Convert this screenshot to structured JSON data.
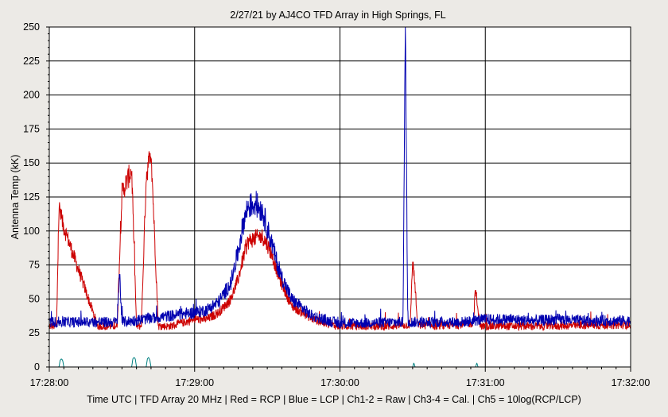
{
  "chart_data": {
    "type": "line",
    "title": "2/27/21  by  AJ4CO TFD Array  in  High Springs, FL",
    "xlabel": "Time UTC | TFD Array 20 MHz | Red = RCP | Blue = LCP | Ch1-2 = Raw | Ch3-4 = Cal. | Ch5 = 10log(RCP/LCP)",
    "ylabel": "Antenna Temp (kK)",
    "x_ticks": [
      "17:28:00",
      "17:29:00",
      "17:30:00",
      "17:31:00",
      "17:32:00"
    ],
    "x_range_seconds_after_1728": [
      0,
      240
    ],
    "ylim": [
      0,
      250
    ],
    "y_ticks": [
      0,
      25,
      50,
      75,
      100,
      125,
      150,
      175,
      200,
      225,
      250
    ],
    "grid": true,
    "series": [
      {
        "name": "RCP",
        "color": "#cc0000",
        "baseline": 30,
        "noise": 3,
        "x": [
          0,
          3,
          4,
          5,
          20,
          28,
          30,
          34,
          36,
          38,
          40,
          42,
          45,
          50,
          60,
          65,
          70,
          75,
          78,
          80,
          82,
          85,
          88,
          90,
          92,
          95,
          100,
          108,
          115,
          120,
          140,
          149,
          150,
          151,
          152,
          160,
          175,
          176,
          177,
          178,
          185,
          200,
          240
        ],
        "y": [
          30,
          30,
          118,
          108,
          30,
          30,
          128,
          145,
          30,
          30,
          140,
          160,
          30,
          30,
          35,
          35,
          40,
          50,
          65,
          80,
          92,
          95,
          96,
          90,
          82,
          65,
          45,
          36,
          31,
          30,
          30,
          31,
          78,
          60,
          31,
          30,
          32,
          58,
          40,
          30,
          30,
          30,
          31
        ]
      },
      {
        "name": "LCP",
        "color": "#0000b0",
        "baseline": 33,
        "noise": 4,
        "x": [
          0,
          28,
          29,
          30,
          60,
          65,
          70,
          75,
          78,
          80,
          82,
          85,
          88,
          90,
          92,
          95,
          100,
          108,
          115,
          120,
          146,
          147,
          148,
          170,
          180,
          190,
          200,
          210,
          220,
          240
        ],
        "y": [
          33,
          33,
          70,
          33,
          40,
          42,
          48,
          62,
          85,
          105,
          118,
          120,
          115,
          102,
          90,
          70,
          50,
          38,
          34,
          32,
          33,
          250,
          33,
          33,
          35,
          35,
          34,
          35,
          34,
          34
        ],
        "extra_points": [
          {
            "x": 28.5,
            "y": 70
          },
          {
            "x": 147,
            "y": 250
          }
        ]
      },
      {
        "name": "Ch5",
        "color": "#008080",
        "x": [
          0,
          4,
          4.5,
          5,
          5.5,
          6,
          34,
          34.5,
          35,
          35.5,
          36,
          40,
          40.5,
          41,
          41.5,
          42,
          150,
          150.5,
          151,
          176,
          176.5,
          177,
          240
        ],
        "y": [
          0,
          0,
          5,
          6,
          5,
          0,
          0,
          6,
          7,
          6,
          0,
          0,
          6,
          7,
          5,
          0,
          0,
          3,
          0,
          0,
          3,
          0,
          0
        ]
      }
    ]
  }
}
